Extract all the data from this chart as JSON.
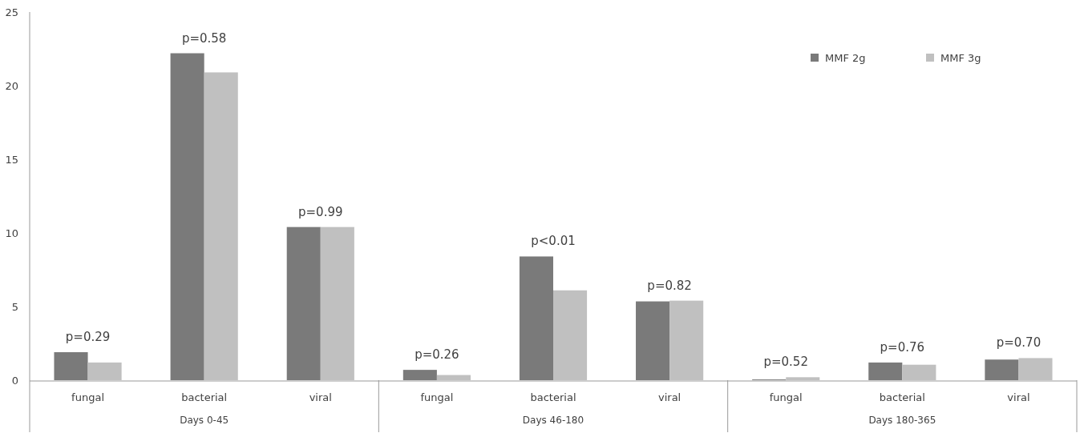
{
  "chart_data": {
    "type": "bar",
    "categories": [
      "fungal",
      "bacterial",
      "viral",
      "fungal",
      "bacterial",
      "viral",
      "fungal",
      "bacterial",
      "viral"
    ],
    "series": [
      {
        "name": "MMF 2g",
        "color": "#7a7a7a",
        "values": [
          1.9,
          22.2,
          10.4,
          0.7,
          8.4,
          5.35,
          0.05,
          1.2,
          1.4
        ]
      },
      {
        "name": "MMF 3g",
        "color": "#c0c0c0",
        "values": [
          1.2,
          20.9,
          10.4,
          0.35,
          6.1,
          5.4,
          0.2,
          1.05,
          1.5
        ]
      }
    ],
    "ylim": [
      0,
      25
    ],
    "yticks": [
      0,
      5,
      10,
      15,
      20,
      25
    ],
    "grid": false,
    "legend": "top right",
    "annotations": [
      "p=0.29",
      "p=0.58",
      "p=0.99",
      "p=0.26",
      "p<0.01",
      "p=0.82",
      "p=0.52",
      "p=0.76",
      "p=0.70",
      "Days 0-45",
      "Days 46-180",
      "Days 180-365"
    ]
  }
}
